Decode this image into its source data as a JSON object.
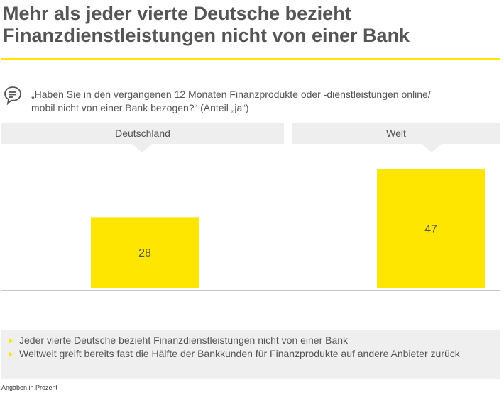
{
  "title_line1": "Mehr als jeder vierte Deutsche bezieht",
  "title_line2": "Finanzdienstleistungen nicht von einer Bank",
  "question_line1": "„Haben Sie in den vergangenen 12 Monaten Finanzprodukte oder -dienstleistungen online/",
  "question_line2": "mobil nicht von einer Bank bezogen?“ (Anteil „ja“)",
  "colors": {
    "accent": "#ffe600",
    "panel": "#eeeeee",
    "text": "#555555"
  },
  "chart_data": {
    "type": "bar",
    "categories": [
      "Deutschland",
      "Welt"
    ],
    "values": [
      28,
      47
    ],
    "unit": "Prozent",
    "ylim": [
      0,
      55
    ]
  },
  "bullets": [
    "Jeder vierte Deutsche bezieht Finanzdienstleistungen nicht von einer Bank",
    "Weltweit greift bereits fast die Hälfte der Bankkunden für Finanzprodukte auf andere Anbieter zurück"
  ],
  "footnote": "Angaben in Prozent"
}
